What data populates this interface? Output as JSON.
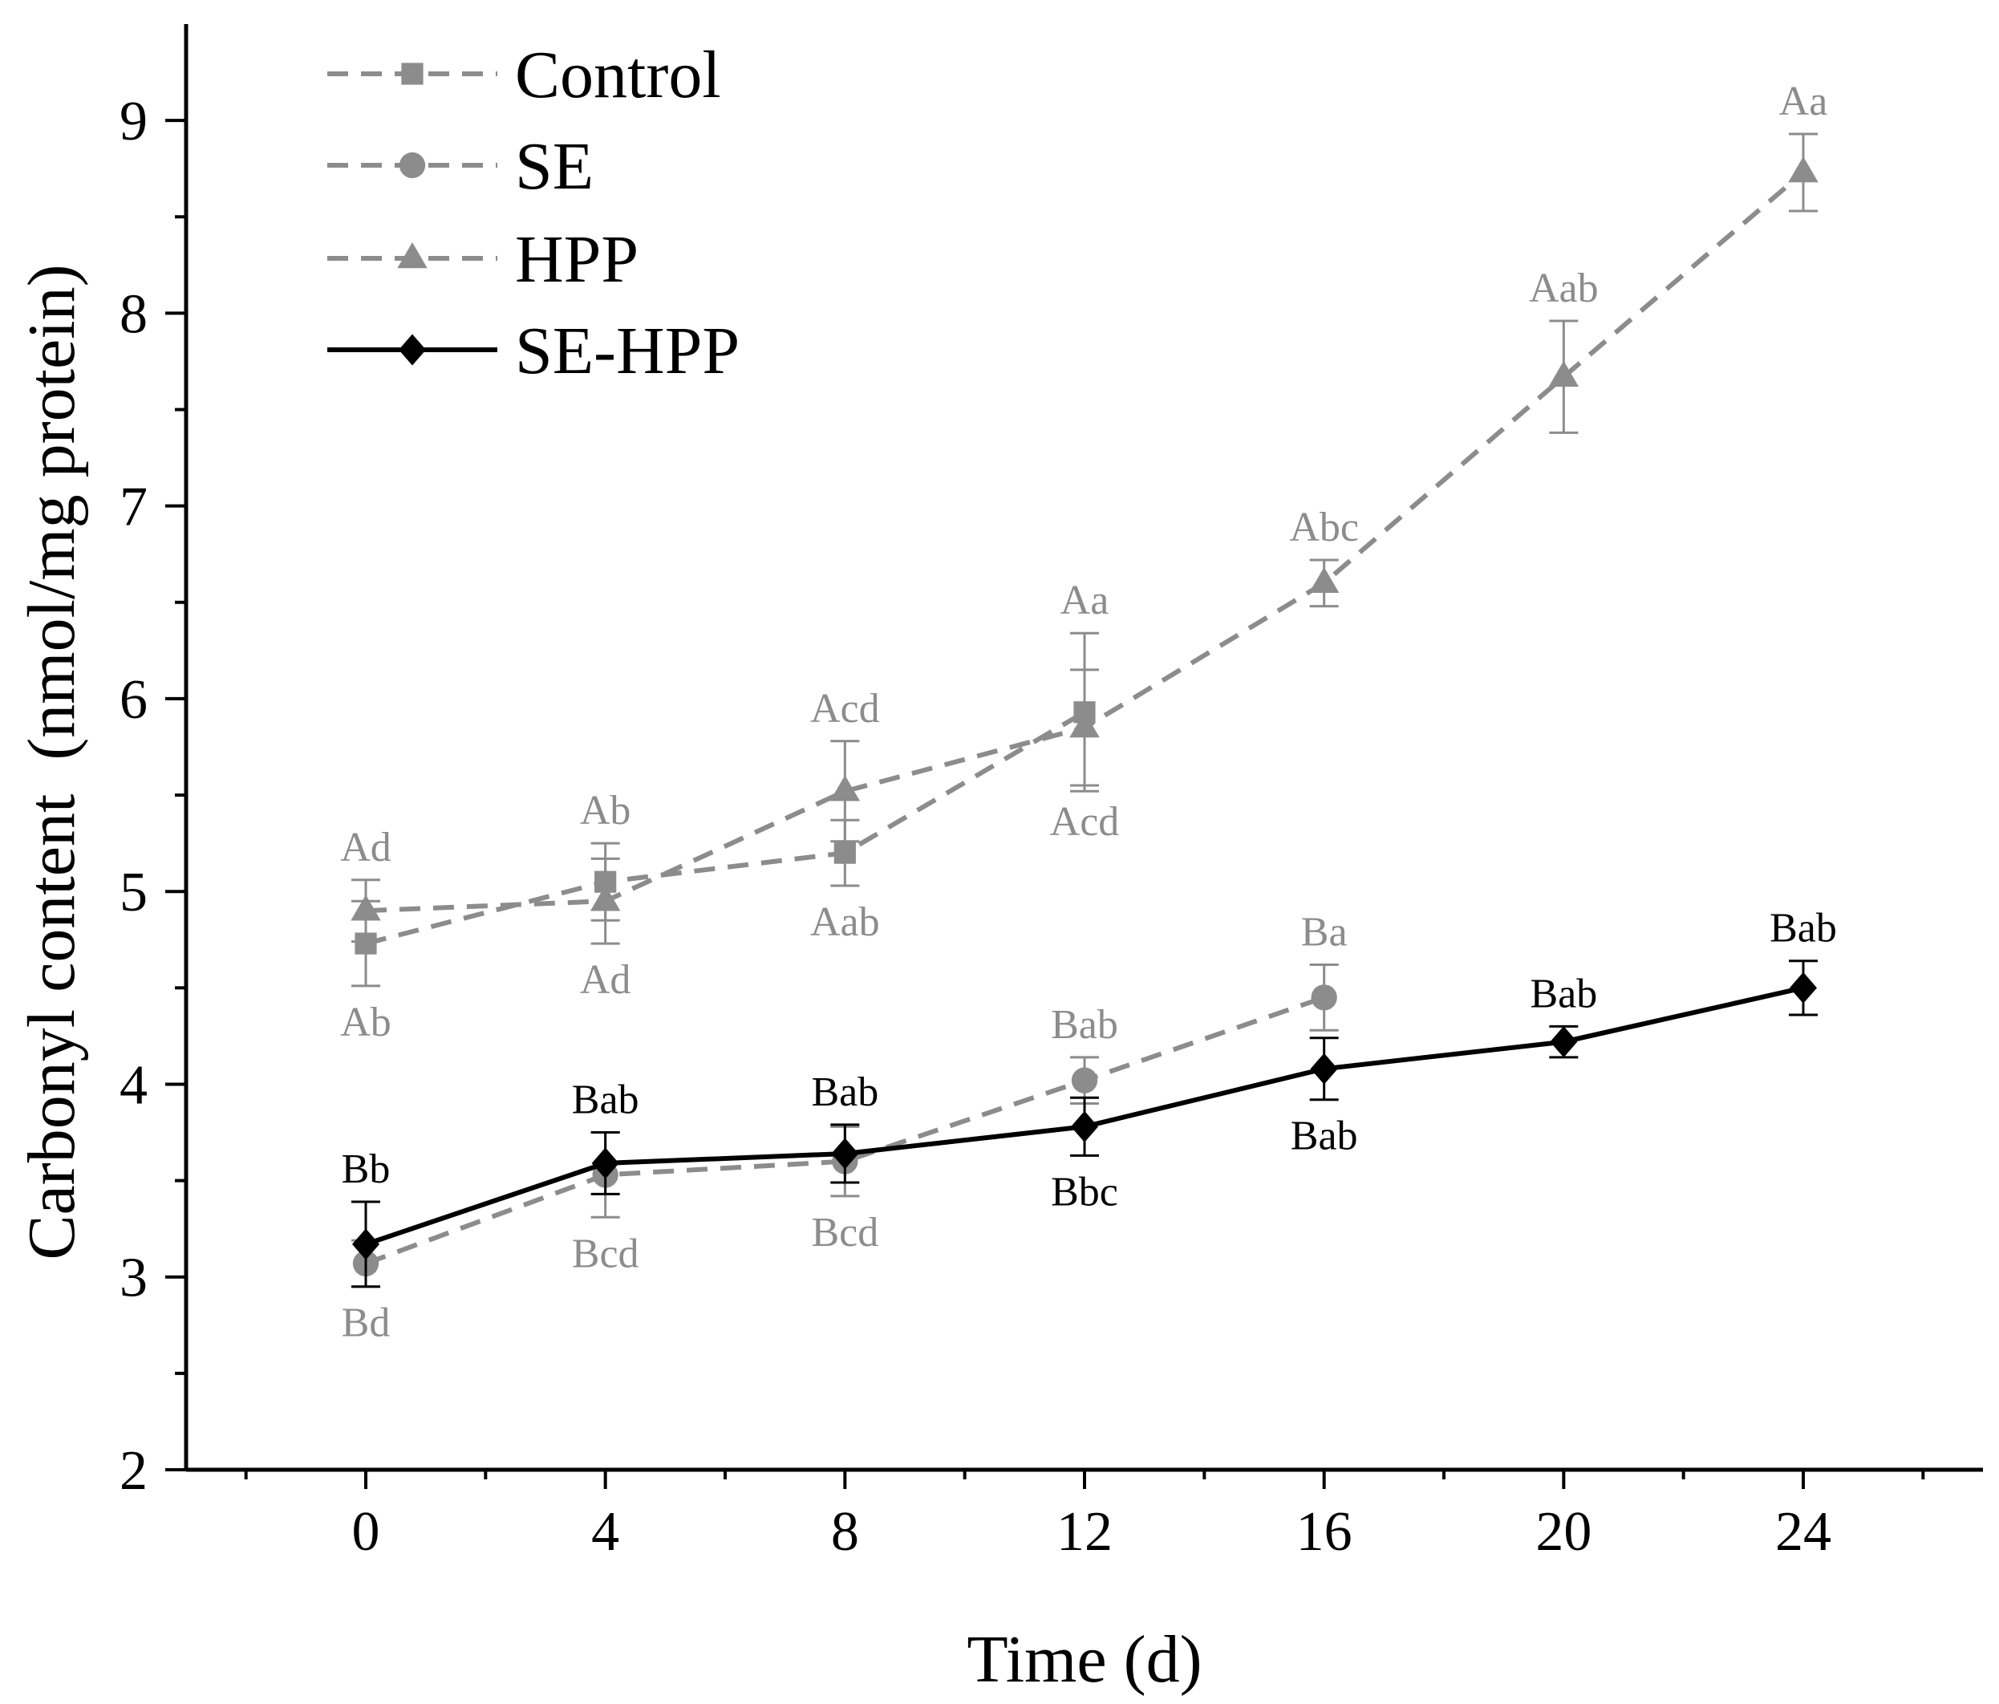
{
  "chart_data": {
    "type": "line",
    "title": "",
    "xlabel": "Time (d)",
    "ylabel": "Carbonyl content  (nmol/mg protein)",
    "xlim": [
      -3,
      27
    ],
    "ylim": [
      2,
      9.5
    ],
    "xticks": [
      0,
      4,
      8,
      12,
      16,
      20,
      24
    ],
    "yticks": [
      2,
      3,
      4,
      5,
      6,
      7,
      8,
      9
    ],
    "grid": false,
    "legend_position": "top-left",
    "series": [
      {
        "name": "Control",
        "color": "#8c8c8c",
        "line": "dashed",
        "marker": "square",
        "x": [
          0,
          4,
          8,
          12
        ],
        "values": [
          4.73,
          5.05,
          5.2,
          5.93
        ],
        "errors": [
          0.22,
          0.2,
          0.17,
          0.41
        ],
        "labels": [
          "Ab",
          "Ab",
          "Aab",
          "Aa"
        ],
        "label_side": [
          "below",
          "above",
          "below",
          "above"
        ]
      },
      {
        "name": "SE",
        "color": "#8c8c8c",
        "line": "dashed",
        "marker": "circle",
        "x": [
          0,
          4,
          8,
          12,
          16
        ],
        "values": [
          3.07,
          3.53,
          3.6,
          4.02,
          4.45
        ],
        "errors": [
          0.12,
          0.22,
          0.18,
          0.12,
          0.17
        ],
        "labels": [
          "Bd",
          "Bcd",
          "Bcd",
          "Bab",
          "Ba"
        ],
        "label_side": [
          "below",
          "below",
          "below",
          "above",
          "above"
        ]
      },
      {
        "name": "HPP",
        "color": "#8c8c8c",
        "line": "dashed",
        "marker": "triangle",
        "x": [
          0,
          4,
          8,
          12,
          16,
          20,
          24
        ],
        "values": [
          4.9,
          4.95,
          5.52,
          5.85,
          6.6,
          7.67,
          8.73
        ],
        "errors": [
          0.16,
          0.22,
          0.26,
          0.3,
          0.12,
          0.29,
          0.2
        ],
        "labels": [
          "Ad",
          "Ad",
          "Acd",
          "Acd",
          "Abc",
          "Aab",
          "Aa"
        ],
        "label_side": [
          "above",
          "below",
          "above",
          "below",
          "above",
          "above",
          "above"
        ]
      },
      {
        "name": "SE-HPP",
        "color": "#000000",
        "line": "solid",
        "marker": "diamond",
        "x": [
          0,
          4,
          8,
          12,
          16,
          20,
          24
        ],
        "values": [
          3.17,
          3.59,
          3.64,
          3.78,
          4.08,
          4.22,
          4.5
        ],
        "errors": [
          0.22,
          0.16,
          0.15,
          0.15,
          0.16,
          0.08,
          0.14
        ],
        "labels": [
          "Bb",
          "Bab",
          "Bab",
          "Bbc",
          "Bab",
          "Bab",
          "Bab"
        ],
        "label_side": [
          "above",
          "above",
          "above",
          "below",
          "below",
          "above",
          "above"
        ]
      }
    ]
  }
}
